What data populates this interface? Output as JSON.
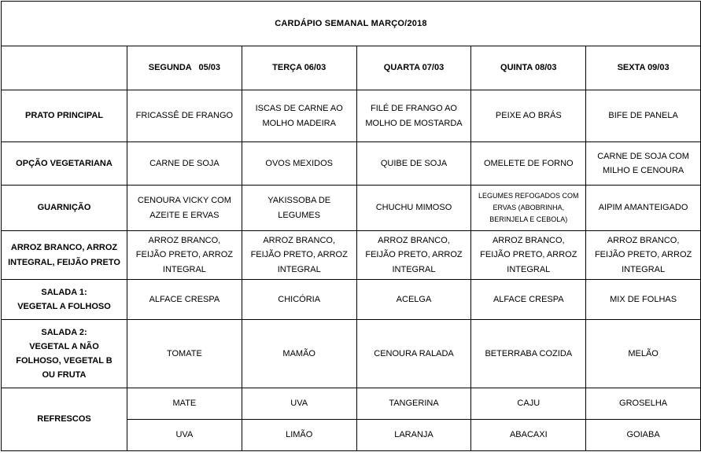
{
  "title": "CARDÁPIO SEMANAL MARÇO/2018",
  "days": [
    "SEGUNDA   05/03",
    "TERÇA 06/03",
    "QUARTA 07/03",
    "QUINTA 08/03",
    "SEXTA 09/03"
  ],
  "rows": [
    {
      "label": "PRATO PRINCIPAL",
      "cells": [
        "FRICASSÊ DE FRANGO",
        "ISCAS DE CARNE AO MOLHO MADEIRA",
        "FILÉ DE FRANGO AO MOLHO DE MOSTARDA",
        "PEIXE AO BRÁS",
        "BIFE DE PANELA"
      ]
    },
    {
      "label": "OPÇÃO VEGETARIANA",
      "cells": [
        "CARNE DE SOJA",
        "OVOS MEXIDOS",
        "QUIBE DE SOJA",
        "OMELETE DE FORNO",
        "CARNE DE SOJA COM MILHO E  CENOURA"
      ]
    },
    {
      "label": "GUARNIÇÃO",
      "cells": [
        "CENOURA VICKY COM AZEITE E ERVAS",
        "YAKISSOBA DE LEGUMES",
        "CHUCHU MIMOSO",
        "LEGUMES REFOGADOS COM ERVAS (ABOBRINHA, BERINJELA E CEBOLA)",
        "AIPIM AMANTEIGADO"
      ]
    },
    {
      "label": "ARROZ BRANCO, ARROZ INTEGRAL, FEIJÃO PRETO",
      "cells": [
        "ARROZ BRANCO, FEIJÃO PRETO, ARROZ INTEGRAL",
        "ARROZ BRANCO, FEIJÃO PRETO, ARROZ INTEGRAL",
        "ARROZ BRANCO, FEIJÃO PRETO, ARROZ INTEGRAL",
        "ARROZ BRANCO, FEIJÃO PRETO, ARROZ INTEGRAL",
        "ARROZ BRANCO, FEIJÃO PRETO, ARROZ INTEGRAL"
      ]
    },
    {
      "label": "SALADA 1:\nVEGETAL A FOLHOSO",
      "cells": [
        "ALFACE CRESPA",
        "CHICÓRIA",
        "ACELGA",
        "ALFACE CRESPA",
        "MIX DE FOLHAS"
      ]
    },
    {
      "label": "SALADA 2:\nVEGETAL A NÃO\nFOLHOSO, VEGETAL B\nOU FRUTA",
      "cells": [
        "TOMATE",
        "MAMÃO",
        "CENOURA RALADA",
        "BETERRABA COZIDA",
        "MELÃO"
      ]
    },
    {
      "label": "REFRESCOS",
      "cells": [
        "MATE",
        "UVA",
        "TANGERINA",
        "CAJU",
        "GROSELHA"
      ]
    },
    {
      "label": "",
      "cells": [
        "UVA",
        "LIMÃO",
        "LARANJA",
        "ABACAXI",
        "GOIABA"
      ]
    }
  ]
}
